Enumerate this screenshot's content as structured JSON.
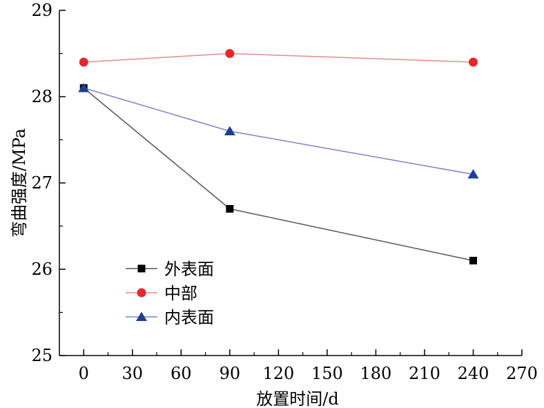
{
  "chart_data": {
    "type": "line",
    "xlabel": "放置时间/d",
    "ylabel": "弯曲强度/MPa",
    "xlim": [
      -15,
      270
    ],
    "ylim": [
      25,
      29
    ],
    "xticks": [
      0,
      30,
      60,
      90,
      120,
      150,
      180,
      210,
      240,
      270
    ],
    "xtick_labels": [
      "0",
      "30",
      "60",
      "90",
      "120",
      "150",
      "180",
      "210",
      "240",
      "270"
    ],
    "yticks": [
      25,
      26,
      27,
      28,
      29
    ],
    "ytick_labels": [
      "25",
      "26",
      "27",
      "28",
      "29"
    ],
    "grid": false,
    "legend_position": "bottom-left",
    "x": [
      0,
      90,
      240
    ],
    "series": [
      {
        "name": "外表面",
        "values": [
          28.1,
          26.7,
          26.1
        ],
        "color": "#555555",
        "marker_color": "#000000",
        "marker": "square"
      },
      {
        "name": "中部",
        "values": [
          28.4,
          28.5,
          28.4
        ],
        "color": "#e88a8a",
        "marker_color": "#e8262b",
        "marker": "circle"
      },
      {
        "name": "内表面",
        "values": [
          28.1,
          27.6,
          27.1
        ],
        "color": "#8080c8",
        "marker_color": "#1c3f95",
        "marker": "triangle"
      }
    ]
  }
}
